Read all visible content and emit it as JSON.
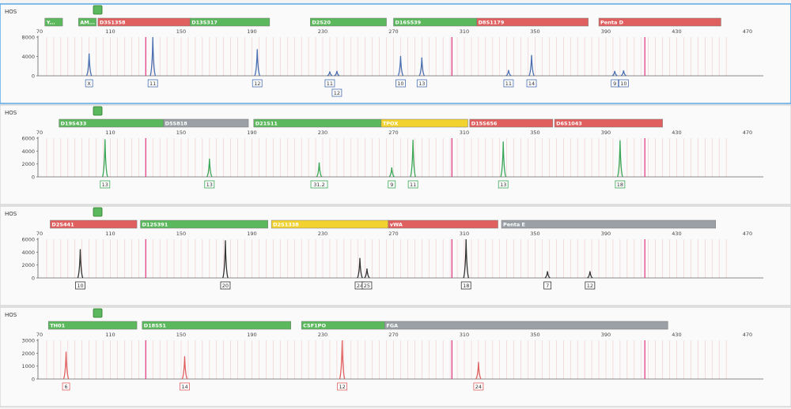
{
  "x_ticks": [
    70,
    110,
    150,
    190,
    230,
    270,
    310,
    350,
    390,
    430,
    470
  ],
  "panels": [
    {
      "dye": "HOS",
      "color": "#4a6fb0",
      "active": true,
      "y_ticks": [
        "8000",
        "4000",
        "0"
      ],
      "y_max": 8000,
      "loci": [
        {
          "name": "Y...",
          "x0": 73,
          "x1": 83,
          "fill": "#5cb85c"
        },
        {
          "name": "AM...",
          "x0": 92,
          "x1": 102,
          "fill": "#5cb85c"
        },
        {
          "name": "D3S1358",
          "x0": 103,
          "x1": 155,
          "fill": "#e0605f"
        },
        {
          "name": "D13S317",
          "x0": 155,
          "x1": 200,
          "fill": "#5cb85c"
        },
        {
          "name": "D2S20",
          "x0": 223,
          "x1": 266,
          "fill": "#5cb85c"
        },
        {
          "name": "D16S539",
          "x0": 270,
          "x1": 317,
          "fill": "#5cb85c"
        },
        {
          "name": "D8S1179",
          "x0": 317,
          "x1": 380,
          "fill": "#e0605f"
        },
        {
          "name": "Penta D",
          "x0": 386,
          "x1": 455,
          "fill": "#e0605f"
        }
      ],
      "peaks": [
        {
          "x": 98,
          "h": 4600,
          "label": "X",
          "row": 0
        },
        {
          "x": 134,
          "h": 8000,
          "label": "11",
          "row": 0
        },
        {
          "x": 193,
          "h": 5500,
          "label": "12",
          "row": 0
        },
        {
          "x": 234,
          "h": 900,
          "label": "11",
          "row": 0
        },
        {
          "x": 238,
          "h": 1000,
          "label": "12",
          "row": 1
        },
        {
          "x": 274,
          "h": 4100,
          "label": "10",
          "row": 0
        },
        {
          "x": 286,
          "h": 3800,
          "label": "13",
          "row": 0
        },
        {
          "x": 335,
          "h": 1200,
          "label": "11",
          "row": 0
        },
        {
          "x": 348,
          "h": 4300,
          "label": "14",
          "row": 0
        },
        {
          "x": 395,
          "h": 1000,
          "label": "9",
          "row": 0
        },
        {
          "x": 400,
          "h": 1100,
          "label": "10",
          "row": 0
        }
      ]
    },
    {
      "dye": "HOS",
      "color": "#3aa655",
      "active": false,
      "y_ticks": [
        "6000",
        "4000",
        "2000",
        "0"
      ],
      "y_max": 7000,
      "loci": [
        {
          "name": "D19S433",
          "x0": 81,
          "x1": 140,
          "fill": "#5cb85c"
        },
        {
          "name": "D5S818",
          "x0": 140,
          "x1": 188,
          "fill": "#9aa0a6"
        },
        {
          "name": "D21S11",
          "x0": 191,
          "x1": 263,
          "fill": "#5cb85c"
        },
        {
          "name": "TPOX",
          "x0": 263,
          "x1": 312,
          "fill": "#f2d22e"
        },
        {
          "name": "D15S656",
          "x0": 313,
          "x1": 360,
          "fill": "#e0605f"
        },
        {
          "name": "D6S1043",
          "x0": 361,
          "x1": 422,
          "fill": "#e0605f"
        }
      ],
      "peaks": [
        {
          "x": 107,
          "h": 6800,
          "label": "13",
          "row": 0
        },
        {
          "x": 166,
          "h": 3300,
          "label": "13",
          "row": 0
        },
        {
          "x": 228,
          "h": 2600,
          "label": "31.2",
          "row": 0
        },
        {
          "x": 269,
          "h": 1700,
          "label": "9",
          "row": 0
        },
        {
          "x": 281,
          "h": 6700,
          "label": "11",
          "row": 0
        },
        {
          "x": 332,
          "h": 6400,
          "label": "13",
          "row": 0
        },
        {
          "x": 398,
          "h": 6600,
          "label": "18",
          "row": 0
        }
      ]
    },
    {
      "dye": "HOS",
      "color": "#333333",
      "active": false,
      "y_ticks": [
        "6000",
        "4000",
        "2000",
        "0"
      ],
      "y_max": 7000,
      "loci": [
        {
          "name": "D2S441",
          "x0": 76,
          "x1": 125,
          "fill": "#e0605f"
        },
        {
          "name": "D12S391",
          "x0": 127,
          "x1": 199,
          "fill": "#5cb85c"
        },
        {
          "name": "D2S1338",
          "x0": 201,
          "x1": 267,
          "fill": "#f2d22e"
        },
        {
          "name": "vWA",
          "x0": 267,
          "x1": 329,
          "fill": "#e0605f"
        },
        {
          "name": "Penta E",
          "x0": 331,
          "x1": 452,
          "fill": "#9aa0a6"
        }
      ],
      "peaks": [
        {
          "x": 93,
          "h": 5200,
          "label": "10",
          "row": 0
        },
        {
          "x": 175,
          "h": 6800,
          "label": "20",
          "row": 0
        },
        {
          "x": 251,
          "h": 3600,
          "label": "24",
          "row": 0
        },
        {
          "x": 255,
          "h": 1700,
          "label": "25",
          "row": 0
        },
        {
          "x": 311,
          "h": 7000,
          "label": "18",
          "row": 0
        },
        {
          "x": 357,
          "h": 1200,
          "label": "7",
          "row": 0
        },
        {
          "x": 381,
          "h": 1200,
          "label": "12",
          "row": 0
        }
      ]
    },
    {
      "dye": "HOS",
      "color": "#e0605f",
      "active": false,
      "y_ticks": [
        "3000",
        "2000",
        "1000",
        "0"
      ],
      "y_max": 3400,
      "loci": [
        {
          "name": "TH01",
          "x0": 75,
          "x1": 125,
          "fill": "#5cb85c"
        },
        {
          "name": "D18S51",
          "x0": 128,
          "x1": 212,
          "fill": "#5cb85c"
        },
        {
          "name": "CSF1PO",
          "x0": 218,
          "x1": 265,
          "fill": "#5cb85c"
        },
        {
          "name": "FGA",
          "x0": 265,
          "x1": 425,
          "fill": "#9aa0a6"
        }
      ],
      "peaks": [
        {
          "x": 85,
          "h": 2400,
          "label": "6",
          "row": 0
        },
        {
          "x": 152,
          "h": 2000,
          "label": "14",
          "row": 0
        },
        {
          "x": 241,
          "h": 3400,
          "label": "12",
          "row": 0
        },
        {
          "x": 318,
          "h": 1500,
          "label": "24",
          "row": 0
        }
      ]
    }
  ]
}
